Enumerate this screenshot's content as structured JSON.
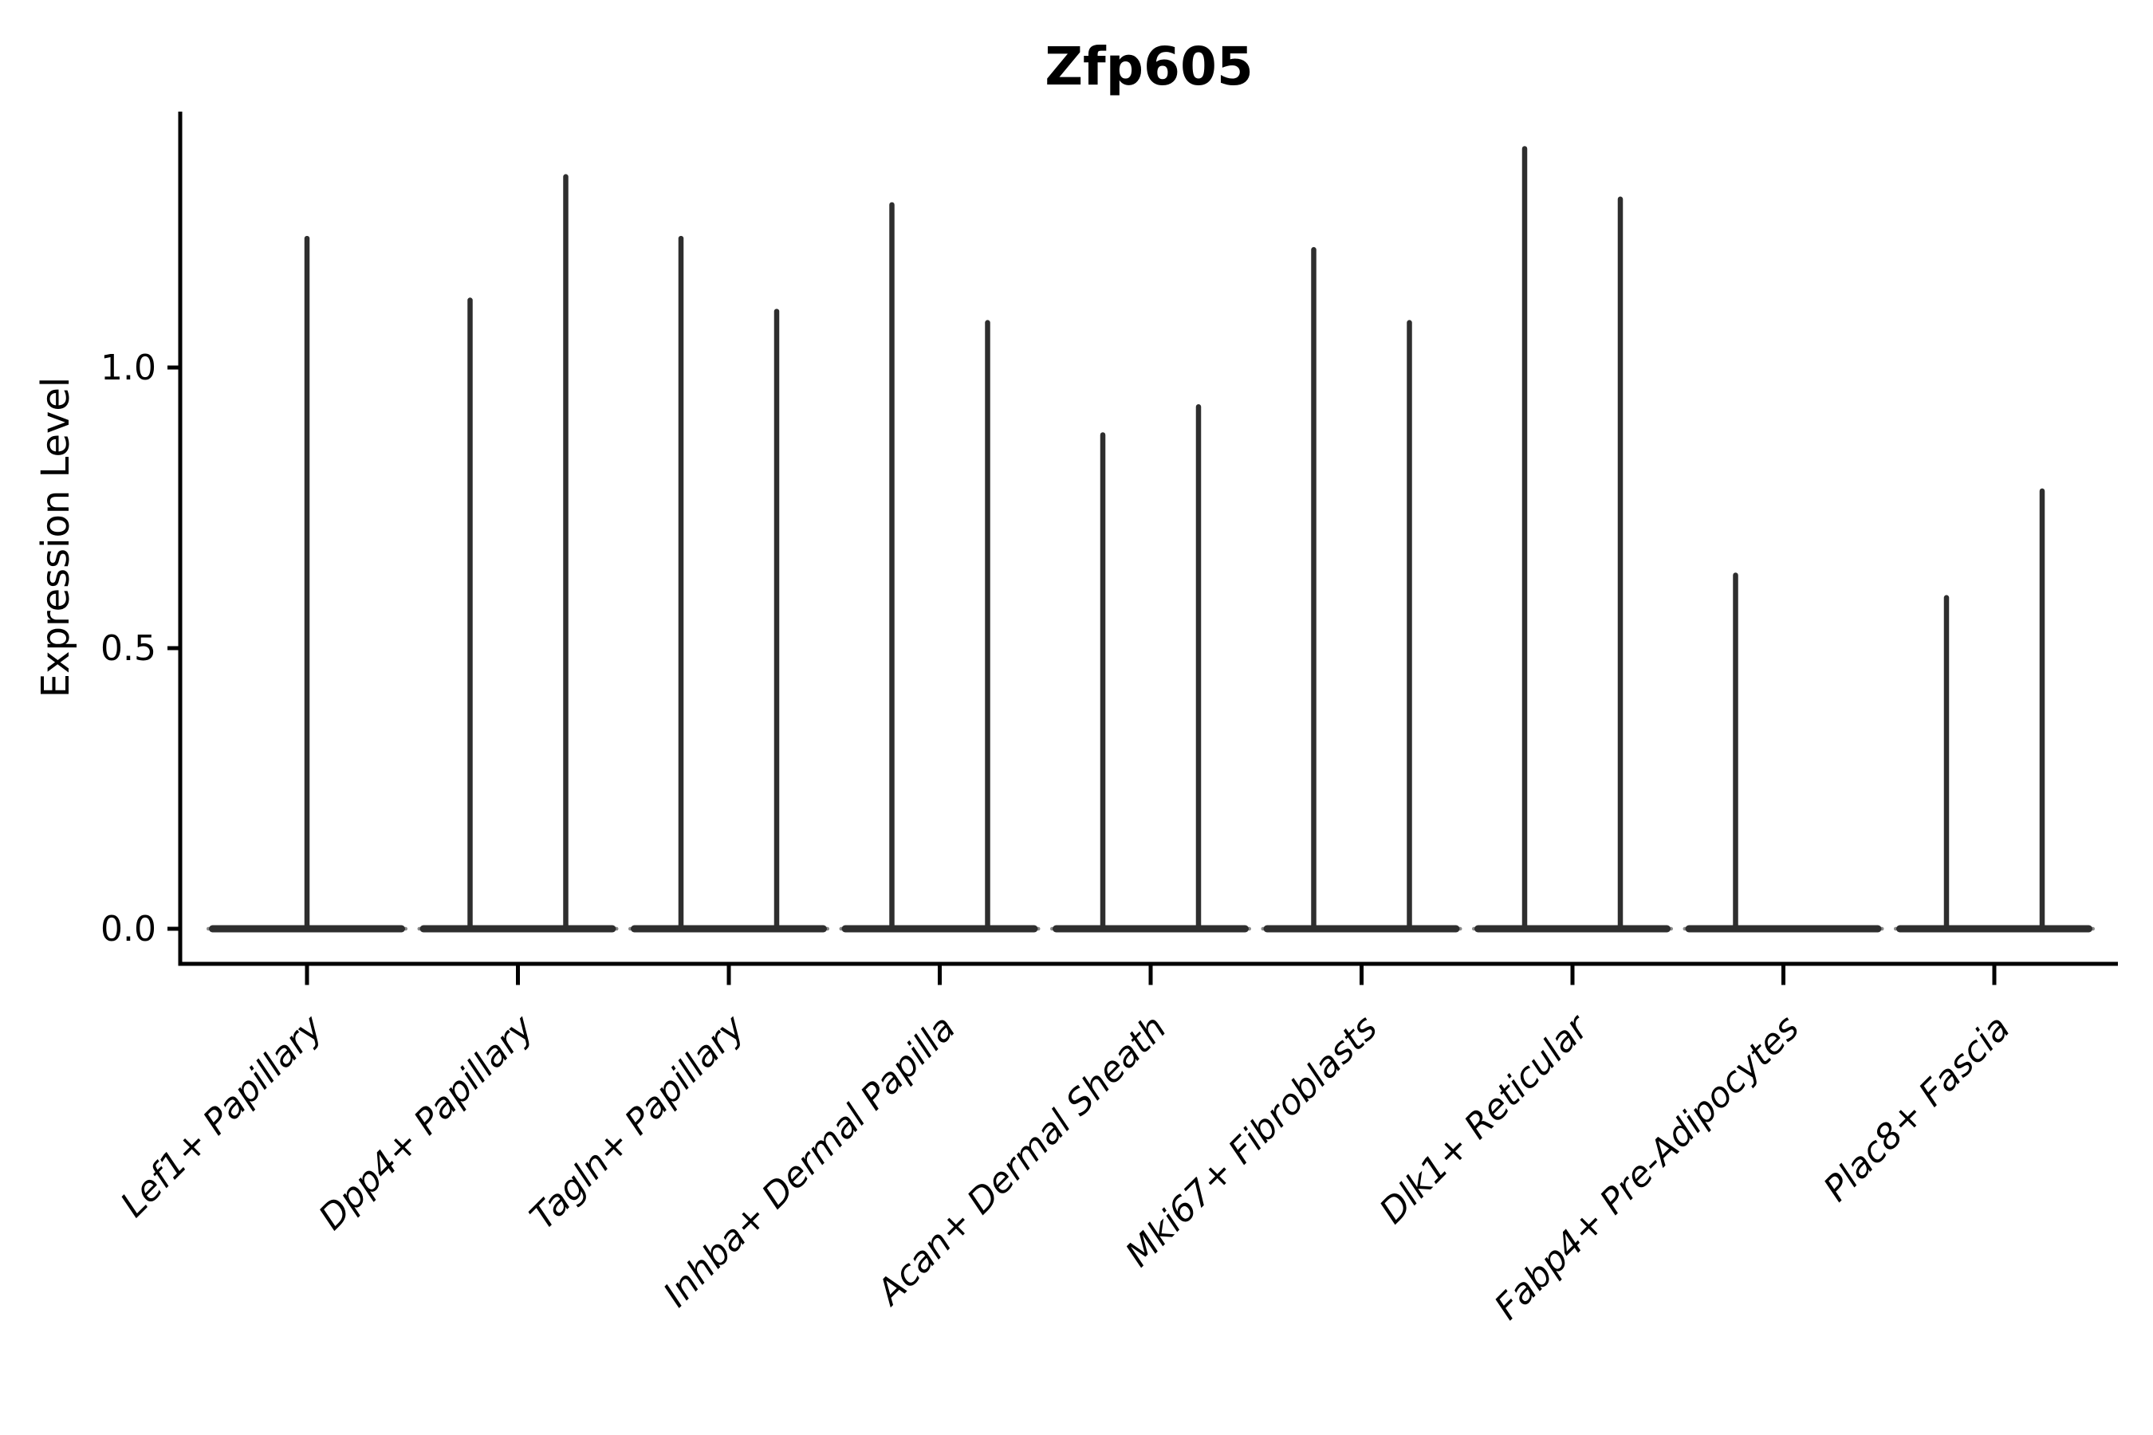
{
  "chart_data": {
    "type": "violin",
    "title": "Zfp605",
    "ylabel": "Expression Level",
    "xlabel": "",
    "grid": false,
    "legend": "none",
    "ylim": [
      -0.06,
      1.46
    ],
    "baseline_value": 0.0,
    "base_bar_at_zero": true,
    "y_axis": {
      "ticks": [
        {
          "label": "0.0",
          "value": 0.0
        },
        {
          "label": "0.5",
          "value": 0.5
        },
        {
          "label": "1.0",
          "value": 1.0
        }
      ]
    },
    "categories": [
      {
        "label": "Lef1+ Papillary",
        "violins": [
          {
            "position": "center",
            "max": 1.23
          }
        ]
      },
      {
        "label": "Dpp4+ Papillary",
        "violins": [
          {
            "position": "left",
            "max": 1.12
          },
          {
            "position": "right",
            "max": 1.34
          }
        ]
      },
      {
        "label": "Tagln+ Papillary",
        "violins": [
          {
            "position": "left",
            "max": 1.23
          },
          {
            "position": "right",
            "max": 1.1
          }
        ]
      },
      {
        "label": "Inhba+ Dermal Papilla",
        "violins": [
          {
            "position": "left",
            "max": 1.29
          },
          {
            "position": "right",
            "max": 1.08
          }
        ]
      },
      {
        "label": "Acan+ Dermal Sheath",
        "violins": [
          {
            "position": "left",
            "max": 0.88
          },
          {
            "position": "right",
            "max": 0.93
          }
        ]
      },
      {
        "label": "Mki67+ Fibroblasts",
        "violins": [
          {
            "position": "left",
            "max": 1.21
          },
          {
            "position": "right",
            "max": 1.08
          }
        ]
      },
      {
        "label": "Dlk1+ Reticular",
        "violins": [
          {
            "position": "left",
            "max": 1.39
          },
          {
            "position": "right",
            "max": 1.3
          }
        ]
      },
      {
        "label": "Fabp4+ Pre-Adipocytes",
        "violins": [
          {
            "position": "left",
            "max": 0.63
          }
        ]
      },
      {
        "label": "Plac8+ Fascia",
        "violins": [
          {
            "position": "left",
            "max": 0.59
          },
          {
            "position": "right",
            "max": 0.78
          }
        ]
      }
    ],
    "colors": {
      "violin": "#2e2e2e",
      "violin_tip_edge": "#8a8a8a",
      "axis": "#000000",
      "text": "#000000",
      "background": "#ffffff"
    }
  }
}
